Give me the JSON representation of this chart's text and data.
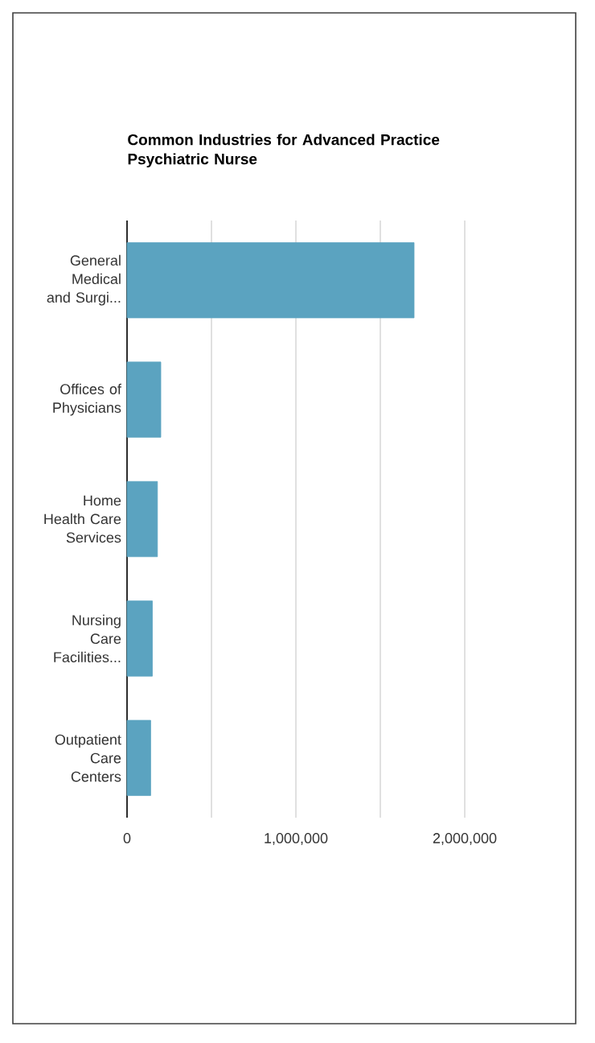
{
  "chart_data": {
    "type": "bar",
    "orientation": "horizontal",
    "title": "Common Industries for Advanced Practice Psychiatric Nurse",
    "categories": [
      "General Medical and Surgi...",
      "Offices of Physicians",
      "Home Health Care Services",
      "Nursing Care Facilities...",
      "Outpatient Care Centers"
    ],
    "values": [
      1700000,
      200000,
      180000,
      150000,
      140000
    ],
    "color": "#5ba3c0",
    "xlim": [
      0,
      2000000
    ],
    "xticks": [
      0,
      {
        "value": 500000,
        "label": null
      },
      {
        "value": 1000000,
        "label": "1,000,000"
      },
      {
        "value": 1500000,
        "label": null
      },
      {
        "value": 2000000,
        "label": "2,000,000"
      }
    ],
    "grid": "x"
  }
}
